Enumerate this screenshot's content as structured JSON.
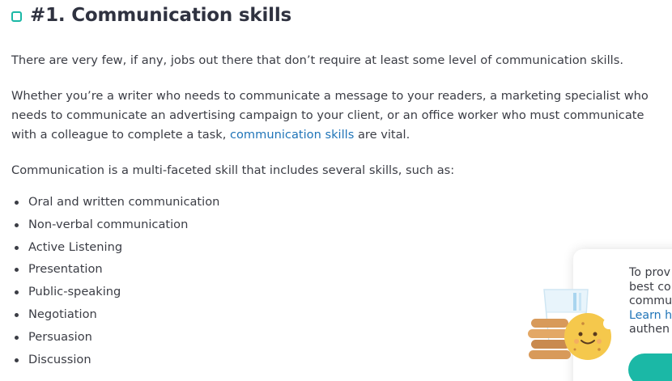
{
  "heading": {
    "title": "#1. Communication skills"
  },
  "paragraphs": {
    "p1": "There are very few, if any, jobs out there that don’t require at least some level of communication skills.",
    "p2_before_link": "Whether you’re a writer who needs to communicate a message to your readers, a marketing specialist who needs to communicate an advertising campaign to your client, or an office worker who must communicate with a colleague to complete a task, ",
    "p2_link": "communication skills",
    "p2_after_link": " are vital.",
    "p3": "Communication is a multi-faceted skill that includes several skills, such as:"
  },
  "bullets": [
    "Oral and written communication",
    "Non-verbal communication",
    "Active Listening",
    "Presentation",
    "Public-speaking",
    "Negotiation",
    "Persuasion",
    "Discussion"
  ],
  "cookie_popup": {
    "line1": "To prov",
    "line2": "best co",
    "line3": "commu",
    "learn_more": "Learn h",
    "line5": "authen"
  },
  "colors": {
    "accent": "#1bb8a6",
    "link": "#1f74b8",
    "text": "#3b3d45"
  }
}
